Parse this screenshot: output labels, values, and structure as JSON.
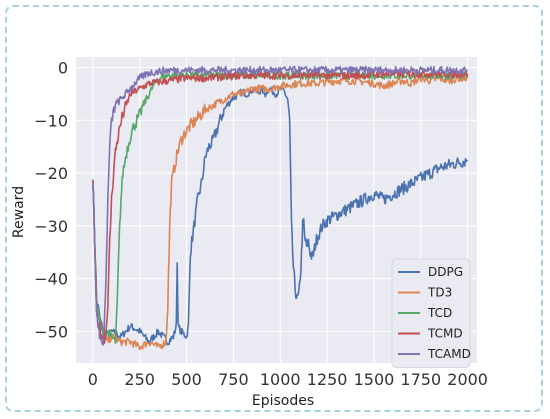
{
  "chart_data": {
    "type": "line",
    "xlabel": "Episodes",
    "ylabel": "Reward",
    "xlim": [
      -90,
      2050
    ],
    "ylim": [
      -56,
      2
    ],
    "xticks": [
      0,
      250,
      500,
      750,
      1000,
      1250,
      1500,
      1750,
      2000
    ],
    "yticks": [
      0,
      -10,
      -20,
      -30,
      -40,
      -50
    ],
    "grid": true,
    "legend_position": "lower-right",
    "series": [
      {
        "name": "DDPG",
        "color": "#4c72b0",
        "x": [
          0,
          20,
          40,
          60,
          80,
          100,
          150,
          200,
          250,
          300,
          350,
          400,
          430,
          445,
          450,
          455,
          470,
          500,
          510,
          520,
          540,
          560,
          580,
          600,
          620,
          640,
          660,
          680,
          700,
          720,
          740,
          760,
          780,
          800,
          820,
          840,
          860,
          880,
          900,
          920,
          940,
          960,
          980,
          1000,
          1020,
          1040,
          1050,
          1055,
          1060,
          1070,
          1080,
          1090,
          1100,
          1110,
          1120,
          1125,
          1130,
          1140,
          1150,
          1160,
          1170,
          1180,
          1190,
          1200,
          1225,
          1250,
          1300,
          1350,
          1400,
          1450,
          1500,
          1550,
          1600,
          1650,
          1700,
          1750,
          1800,
          1850,
          1900,
          1950,
          2000
        ],
        "y": [
          -21,
          -44,
          -48,
          -50,
          -52,
          -50,
          -51,
          -49,
          -50,
          -52,
          -50,
          -52,
          -51,
          -49,
          -37,
          -49,
          -50,
          -51,
          -49,
          -35,
          -30,
          -25,
          -22,
          -17,
          -15,
          -14,
          -12,
          -10,
          -8,
          -7,
          -6,
          -5.5,
          -5,
          -4.5,
          -5,
          -4.5,
          -4,
          -5,
          -4,
          -5,
          -4,
          -4.5,
          -5,
          -4,
          -4.5,
          -6,
          -10,
          -20,
          -30,
          -38,
          -42,
          -44,
          -43,
          -38,
          -30,
          -29,
          -32,
          -34,
          -33,
          -35,
          -36,
          -35,
          -33,
          -32,
          -30,
          -29,
          -28,
          -27,
          -26,
          -25,
          -24,
          -25,
          -24,
          -23,
          -22,
          -21,
          -20,
          -19,
          -18.5,
          -18,
          -17.5
        ]
      },
      {
        "name": "TD3",
        "color": "#dd8452",
        "x": [
          0,
          20,
          40,
          60,
          80,
          100,
          150,
          200,
          250,
          300,
          350,
          390,
          400,
          410,
          420,
          440,
          460,
          480,
          500,
          520,
          550,
          600,
          650,
          700,
          750,
          800,
          850,
          900,
          950,
          1000,
          1100,
          1200,
          1300,
          1400,
          1500,
          1550,
          1600,
          1650,
          1700,
          1750,
          1800,
          1850,
          1900,
          1950,
          2000
        ],
        "y": [
          -21,
          -45,
          -49,
          -51,
          -52,
          -51,
          -52,
          -52,
          -53,
          -52,
          -53,
          -52,
          -45,
          -30,
          -22,
          -18,
          -15,
          -13,
          -12,
          -11,
          -10,
          -8,
          -7,
          -6,
          -5,
          -5,
          -4,
          -4,
          -4,
          -3.5,
          -3,
          -3,
          -2.5,
          -2.5,
          -3,
          -3.5,
          -3,
          -2.5,
          -3,
          -2,
          -2.5,
          -2,
          -2.5,
          -2,
          -2
        ]
      },
      {
        "name": "TCD",
        "color": "#55a868",
        "x": [
          0,
          20,
          40,
          60,
          80,
          100,
          120,
          130,
          140,
          150,
          160,
          180,
          200,
          220,
          250,
          270,
          300,
          330,
          360,
          400,
          450,
          500,
          600,
          700,
          800,
          900,
          1000,
          1200,
          1400,
          1600,
          1800,
          2000
        ],
        "y": [
          -21,
          -45,
          -49,
          -51,
          -50,
          -51,
          -52,
          -45,
          -33,
          -25,
          -20,
          -16,
          -13,
          -11,
          -9,
          -7,
          -5,
          -3,
          -2,
          -1.5,
          -1.5,
          -1.5,
          -1.5,
          -1.5,
          -1.5,
          -1.5,
          -1.5,
          -1.5,
          -1.5,
          -1.5,
          -1.5,
          -1.5
        ]
      },
      {
        "name": "TCMD",
        "color": "#c44e52",
        "x": [
          0,
          20,
          40,
          60,
          70,
          80,
          90,
          100,
          110,
          120,
          140,
          160,
          180,
          200,
          250,
          300,
          400,
          500,
          600,
          800,
          1000,
          1200,
          1400,
          1600,
          1800,
          2000
        ],
        "y": [
          -21,
          -47,
          -50,
          -52,
          -50,
          -45,
          -33,
          -25,
          -20,
          -16,
          -12,
          -9,
          -7,
          -5,
          -4,
          -3,
          -2.5,
          -2,
          -2,
          -1.5,
          -1.5,
          -1.5,
          -1.5,
          -1.2,
          -1.2,
          -1.2
        ]
      },
      {
        "name": "TCAMD",
        "color": "#8172b3",
        "x": [
          0,
          20,
          40,
          50,
          60,
          70,
          80,
          90,
          100,
          120,
          150,
          200,
          250,
          300,
          400,
          500,
          700,
          900,
          1200,
          1500,
          1800,
          2000
        ],
        "y": [
          -21,
          -47,
          -51,
          -53,
          -50,
          -40,
          -25,
          -15,
          -10,
          -7,
          -6,
          -4,
          -2,
          -1,
          -0.5,
          -0.5,
          -0.5,
          -0.5,
          -0.5,
          -0.5,
          -0.5,
          -0.5
        ]
      }
    ]
  }
}
